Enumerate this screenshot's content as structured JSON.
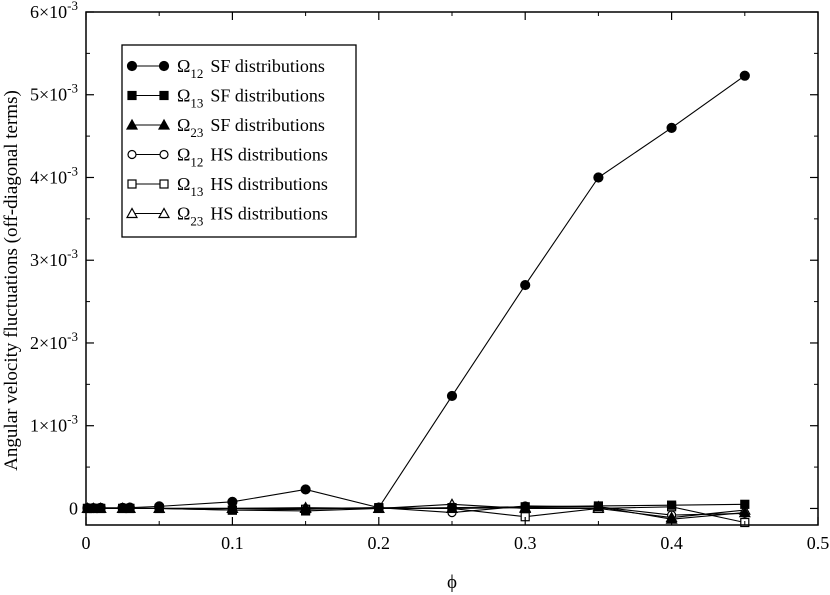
{
  "chart_data": {
    "type": "line",
    "xlabel": "ϕ",
    "ylabel": "Angular velocity fluctuations (off-diagonal terms)",
    "xlim": [
      0,
      0.5
    ],
    "ylim": [
      -0.0002,
      0.006
    ],
    "x_ticks": [
      {
        "value": 0,
        "label": "0"
      },
      {
        "value": 0.1,
        "label": "0.1"
      },
      {
        "value": 0.2,
        "label": "0.2"
      },
      {
        "value": 0.3,
        "label": "0.3"
      },
      {
        "value": 0.4,
        "label": "0.4"
      },
      {
        "value": 0.5,
        "label": "0.5"
      }
    ],
    "y_ticks": [
      {
        "value": 0,
        "mant": "0",
        "exp": ""
      },
      {
        "value": 0.001,
        "mant": "1×10",
        "exp": "-3"
      },
      {
        "value": 0.002,
        "mant": "2×10",
        "exp": "-3"
      },
      {
        "value": 0.003,
        "mant": "3×10",
        "exp": "-3"
      },
      {
        "value": 0.004,
        "mant": "4×10",
        "exp": "-3"
      },
      {
        "value": 0.005,
        "mant": "5×10",
        "exp": "-3"
      },
      {
        "value": 0.006,
        "mant": "6×10",
        "exp": "-3"
      }
    ],
    "legend_position": "top-left",
    "grid": false,
    "series": [
      {
        "symbol": "Ω",
        "sub": "12",
        "label": "SF distributions",
        "marker": "circle",
        "filled": true,
        "x": [
          0.001,
          0.005,
          0.01,
          0.025,
          0.03,
          0.05,
          0.1,
          0.15,
          0.2,
          0.25,
          0.3,
          0.35,
          0.4,
          0.45
        ],
        "y": [
          5e-06,
          5e-06,
          8e-06,
          8e-06,
          1e-05,
          2.5e-05,
          8e-05,
          0.00023,
          1e-05,
          0.00136,
          0.0027,
          0.004,
          0.0046,
          0.00523
        ]
      },
      {
        "symbol": "Ω",
        "sub": "13",
        "label": "SF distributions",
        "marker": "square",
        "filled": true,
        "x": [
          0.001,
          0.005,
          0.01,
          0.025,
          0.03,
          0.05,
          0.1,
          0.15,
          0.2,
          0.25,
          0.3,
          0.35,
          0.4,
          0.45
        ],
        "y": [
          0.0,
          0.0,
          0.0,
          0.0,
          0.0,
          0.0,
          -2e-05,
          -3e-05,
          0.0,
          1e-05,
          2e-05,
          3e-05,
          4e-05,
          5e-05
        ]
      },
      {
        "symbol": "Ω",
        "sub": "23",
        "label": "SF distributions",
        "marker": "triangle",
        "filled": true,
        "x": [
          0.001,
          0.005,
          0.01,
          0.025,
          0.03,
          0.05,
          0.1,
          0.15,
          0.2,
          0.25,
          0.3,
          0.35,
          0.4,
          0.45
        ],
        "y": [
          0.0,
          0.0,
          0.0,
          0.0,
          0.0,
          0.0,
          0.0,
          1e-05,
          0.0,
          0.0,
          1e-05,
          2e-05,
          -0.00013,
          -5e-05
        ]
      },
      {
        "symbol": "Ω",
        "sub": "12",
        "label": "HS distributions",
        "marker": "circle",
        "filled": false,
        "x": [
          0.001,
          0.005,
          0.01,
          0.025,
          0.03,
          0.05,
          0.1,
          0.15,
          0.2,
          0.25,
          0.3,
          0.35,
          0.4,
          0.45
        ],
        "y": [
          0.0,
          0.0,
          0.0,
          0.0,
          0.0,
          0.0,
          0.0,
          0.0,
          1e-05,
          -5e-05,
          3e-05,
          2e-05,
          -8e-05,
          -6e-05
        ]
      },
      {
        "symbol": "Ω",
        "sub": "13",
        "label": "HS distributions",
        "marker": "square",
        "filled": false,
        "x": [
          0.001,
          0.005,
          0.01,
          0.025,
          0.03,
          0.05,
          0.1,
          0.15,
          0.2,
          0.25,
          0.3,
          0.35,
          0.4,
          0.45
        ],
        "y": [
          0.0,
          0.0,
          0.0,
          0.0,
          0.0,
          0.0,
          -2e-05,
          -1e-05,
          1e-05,
          0.0,
          -0.0001,
          0.0,
          2e-05,
          -0.00017
        ]
      },
      {
        "symbol": "Ω",
        "sub": "23",
        "label": "HS distributions",
        "marker": "triangle",
        "filled": false,
        "x": [
          0.001,
          0.005,
          0.01,
          0.025,
          0.03,
          0.05,
          0.1,
          0.15,
          0.2,
          0.25,
          0.3,
          0.35,
          0.4,
          0.45
        ],
        "y": [
          0.0,
          0.0,
          0.0,
          0.0,
          0.0,
          0.0,
          0.0,
          0.0,
          0.0,
          5e-05,
          0.0,
          0.0,
          -0.00011,
          -2e-05
        ]
      }
    ]
  }
}
